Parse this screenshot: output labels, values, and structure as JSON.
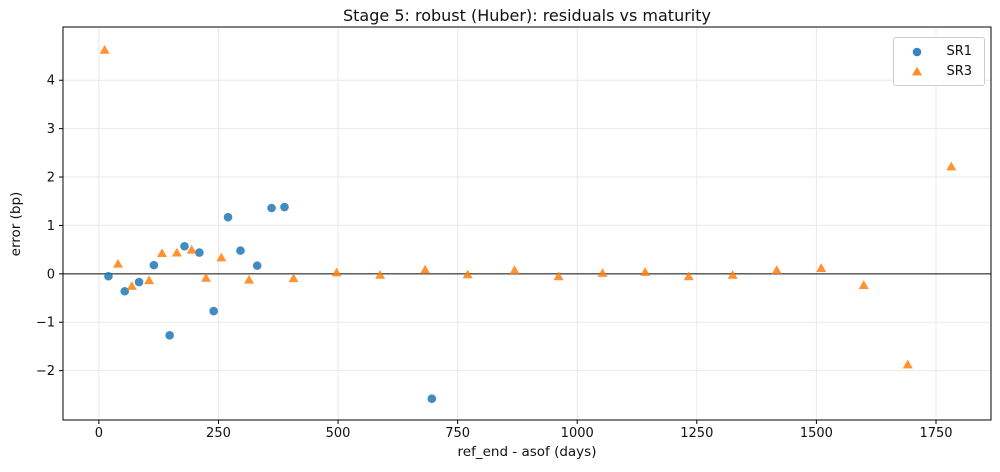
{
  "chart_data": {
    "type": "scatter",
    "title": "Stage 5: robust (Huber): residuals vs maturity",
    "xlabel": "ref_end - asof (days)",
    "ylabel": "error (bp)",
    "xlim": [
      -75,
      1865
    ],
    "ylim": [
      -3.02,
      5.1
    ],
    "xticks": [
      0,
      250,
      500,
      750,
      1000,
      1250,
      1500,
      1750
    ],
    "yticks": [
      -2,
      -1,
      0,
      1,
      2,
      3,
      4
    ],
    "grid": true,
    "grid_color": "#e8e8e8",
    "zero_line_y": 0,
    "zero_line_color": "#4d4d4d",
    "legend_position": "upper right",
    "marker_alpha": 0.85,
    "series": [
      {
        "name": "SR1",
        "marker": "circle",
        "color": "#1f77b4",
        "points": [
          [
            20,
            -0.05
          ],
          [
            54,
            -0.36
          ],
          [
            84,
            -0.17
          ],
          [
            115,
            0.18
          ],
          [
            148,
            -1.27
          ],
          [
            179,
            0.57
          ],
          [
            210,
            0.44
          ],
          [
            240,
            -0.77
          ],
          [
            270,
            1.17
          ],
          [
            296,
            0.48
          ],
          [
            331,
            0.17
          ],
          [
            361,
            1.36
          ],
          [
            388,
            1.38
          ],
          [
            696,
            -2.58
          ]
        ]
      },
      {
        "name": "SR3",
        "marker": "triangle",
        "color": "#ff7f0e",
        "points": [
          [
            12,
            4.62
          ],
          [
            40,
            0.2
          ],
          [
            69,
            -0.26
          ],
          [
            105,
            -0.14
          ],
          [
            132,
            0.42
          ],
          [
            163,
            0.43
          ],
          [
            194,
            0.49
          ],
          [
            224,
            -0.09
          ],
          [
            256,
            0.33
          ],
          [
            314,
            -0.13
          ],
          [
            407,
            -0.1
          ],
          [
            497,
            0.02
          ],
          [
            588,
            -0.03
          ],
          [
            682,
            0.08
          ],
          [
            771,
            -0.02
          ],
          [
            869,
            0.07
          ],
          [
            961,
            -0.06
          ],
          [
            1053,
            0.01
          ],
          [
            1142,
            0.03
          ],
          [
            1233,
            -0.06
          ],
          [
            1325,
            -0.03
          ],
          [
            1417,
            0.07
          ],
          [
            1510,
            0.11
          ],
          [
            1599,
            -0.24
          ],
          [
            1691,
            -1.88
          ],
          [
            1782,
            2.21
          ]
        ]
      }
    ]
  }
}
